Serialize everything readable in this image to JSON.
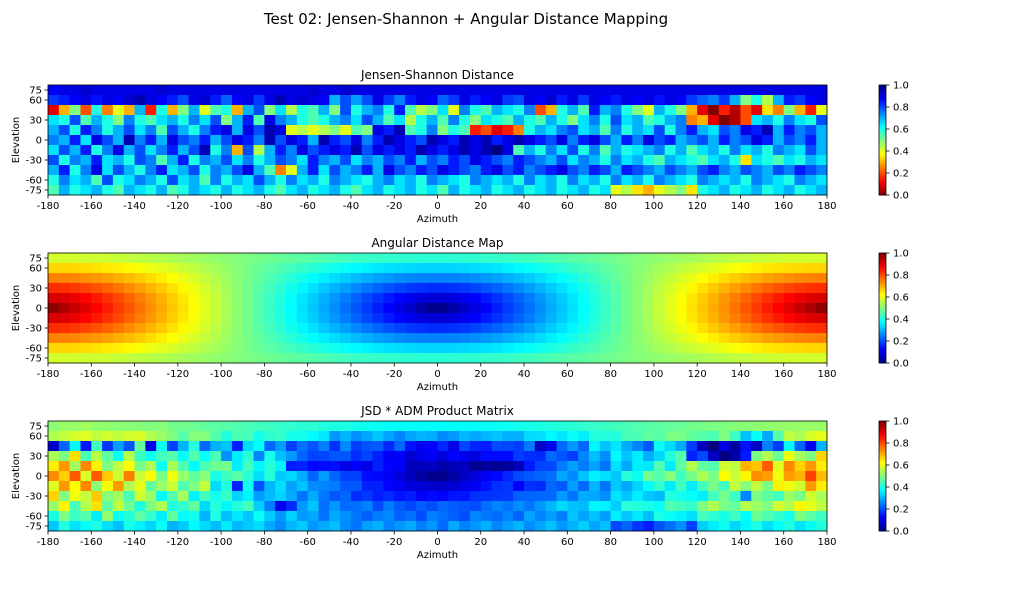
{
  "figure": {
    "title": "Test 02: Jensen-Shannon + Angular Distance Mapping"
  },
  "chart_data": [
    {
      "type": "heatmap",
      "title": "Jensen-Shannon Distance",
      "xlabel": "Azimuth",
      "ylabel": "Elevation",
      "colormap": "jet_r",
      "xlim": [
        -180,
        180
      ],
      "ylim": [
        -82.5,
        82.5
      ],
      "x_ticks": [
        -180,
        -160,
        -140,
        -120,
        -100,
        -80,
        -60,
        -40,
        -20,
        0,
        20,
        40,
        60,
        80,
        100,
        120,
        140,
        160,
        180
      ],
      "y_ticks": [
        75,
        60,
        30,
        0,
        -30,
        -60,
        -75
      ],
      "colorbar": {
        "range": [
          0,
          1
        ],
        "ticks": [
          0.0,
          0.2,
          0.4,
          0.6,
          0.8,
          1.0
        ]
      },
      "rows": [
        {
          "elevation": 75,
          "values": [
            0.88,
            0.9,
            0.9,
            0.92,
            0.9,
            0.9,
            0.9,
            0.9,
            0.9,
            0.9,
            0.92,
            0.9,
            0.9,
            0.9,
            0.9,
            0.9,
            0.9,
            0.9,
            0.9,
            0.9,
            0.9,
            0.9,
            0.9,
            0.9,
            0.92,
            0.9,
            0.9,
            0.92,
            0.9,
            0.9,
            0.9,
            0.9,
            0.9,
            0.9,
            0.9,
            0.9,
            0.9,
            0.9,
            0.9,
            0.9,
            0.9,
            0.9,
            0.9,
            0.9,
            0.9,
            0.9,
            0.9,
            0.9,
            0.9,
            0.9,
            0.9,
            0.9,
            0.9,
            0.9,
            0.9,
            0.9,
            0.9,
            0.9,
            0.9,
            0.9,
            0.9,
            0.9,
            0.9,
            0.9,
            0.9,
            0.9,
            0.9,
            0.9,
            0.9,
            0.9,
            0.9,
            0.9
          ]
        },
        {
          "elevation": 60,
          "values": [
            0.82,
            0.85,
            0.88,
            0.9,
            0.86,
            0.9,
            0.88,
            0.92,
            0.95,
            0.9,
            0.88,
            0.85,
            0.8,
            0.9,
            0.92,
            0.85,
            0.78,
            0.88,
            0.9,
            0.82,
            0.9,
            0.95,
            0.9,
            0.92,
            0.9,
            0.88,
            0.7,
            0.8,
            0.72,
            0.8,
            0.9,
            0.82,
            0.75,
            0.85,
            0.9,
            0.88,
            0.78,
            0.82,
            0.9,
            0.85,
            0.88,
            0.9,
            0.82,
            0.8,
            0.9,
            0.88,
            0.92,
            0.85,
            0.9,
            0.82,
            0.9,
            0.88,
            0.85,
            0.9,
            0.88,
            0.9,
            0.86,
            0.9,
            0.88,
            0.82,
            0.78,
            0.75,
            0.82,
            0.7,
            0.5,
            0.6,
            0.45,
            0.7,
            0.85,
            0.82,
            0.88,
            0.9
          ]
        },
        {
          "elevation": 45,
          "values": [
            0.1,
            0.3,
            0.5,
            0.2,
            0.6,
            0.25,
            0.4,
            0.3,
            0.7,
            0.15,
            0.6,
            0.3,
            0.5,
            0.7,
            0.4,
            0.55,
            0.6,
            0.3,
            0.7,
            0.8,
            0.5,
            0.65,
            0.45,
            0.6,
            0.55,
            0.7,
            0.5,
            0.8,
            0.6,
            0.7,
            0.75,
            0.6,
            0.85,
            0.55,
            0.45,
            0.5,
            0.65,
            0.4,
            0.75,
            0.6,
            0.55,
            0.7,
            0.65,
            0.6,
            0.75,
            0.2,
            0.3,
            0.6,
            0.7,
            0.55,
            0.85,
            0.7,
            0.75,
            0.6,
            0.5,
            0.4,
            0.7,
            0.6,
            0.5,
            0.3,
            0.1,
            0.0,
            0.15,
            0.05,
            0.2,
            0.1,
            0.35,
            0.25,
            0.5,
            0.3,
            0.15,
            0.4
          ]
        },
        {
          "elevation": 30,
          "values": [
            0.65,
            0.6,
            0.8,
            0.55,
            0.7,
            0.6,
            0.5,
            0.75,
            0.6,
            0.55,
            0.65,
            0.7,
            0.6,
            0.75,
            0.65,
            0.8,
            0.5,
            0.7,
            0.85,
            0.55,
            0.9,
            0.75,
            0.7,
            0.6,
            0.55,
            0.6,
            0.7,
            0.75,
            0.65,
            0.8,
            0.7,
            0.55,
            0.65,
            0.45,
            0.6,
            0.7,
            0.55,
            0.75,
            0.6,
            0.5,
            0.65,
            0.6,
            0.55,
            0.7,
            0.6,
            0.55,
            0.7,
            0.6,
            0.5,
            0.65,
            0.75,
            0.6,
            0.8,
            0.65,
            0.7,
            0.55,
            0.6,
            0.7,
            0.75,
            0.25,
            0.3,
            0.1,
            0.0,
            0.05,
            0.2,
            0.65,
            0.7,
            0.6,
            0.75,
            0.65,
            0.6,
            0.8
          ]
        },
        {
          "elevation": 15,
          "values": [
            0.7,
            0.8,
            0.6,
            0.85,
            0.75,
            0.6,
            0.7,
            0.8,
            0.65,
            0.75,
            0.55,
            0.8,
            0.7,
            0.6,
            0.75,
            0.85,
            0.9,
            0.7,
            0.9,
            0.8,
            0.95,
            0.9,
            0.4,
            0.45,
            0.4,
            0.45,
            0.5,
            0.4,
            0.55,
            0.5,
            0.9,
            0.85,
            0.95,
            0.55,
            0.6,
            0.75,
            0.5,
            0.6,
            0.55,
            0.15,
            0.2,
            0.1,
            0.15,
            0.25,
            0.6,
            0.7,
            0.65,
            0.75,
            0.8,
            0.65,
            0.7,
            0.55,
            0.75,
            0.6,
            0.7,
            0.65,
            0.8,
            0.6,
            0.75,
            0.85,
            0.7,
            0.65,
            0.8,
            0.75,
            0.9,
            0.85,
            0.95,
            0.7,
            0.85,
            0.75,
            0.8,
            0.7
          ]
        },
        {
          "elevation": 0,
          "values": [
            0.75,
            0.7,
            0.85,
            0.65,
            0.9,
            0.8,
            0.7,
            0.95,
            0.75,
            0.85,
            0.7,
            0.9,
            0.8,
            0.75,
            0.85,
            0.7,
            0.8,
            0.9,
            0.85,
            0.75,
            0.95,
            0.8,
            0.9,
            0.85,
            0.7,
            0.95,
            0.85,
            0.8,
            0.9,
            0.75,
            0.85,
            0.95,
            0.9,
            0.85,
            0.8,
            0.95,
            0.9,
            0.85,
            0.95,
            0.9,
            0.95,
            0.85,
            0.9,
            0.95,
            0.9,
            0.85,
            0.8,
            0.9,
            0.75,
            0.85,
            0.9,
            0.8,
            0.7,
            0.85,
            0.75,
            0.9,
            0.8,
            0.85,
            0.7,
            0.75,
            0.8,
            0.7,
            0.85,
            0.75,
            0.8,
            0.9,
            0.85,
            0.7,
            0.8,
            0.75,
            0.85,
            0.7
          ]
        },
        {
          "elevation": -15,
          "values": [
            0.65,
            0.8,
            0.7,
            0.85,
            0.6,
            0.75,
            0.9,
            0.7,
            0.8,
            0.65,
            0.75,
            0.85,
            0.7,
            0.8,
            0.95,
            0.6,
            0.75,
            0.3,
            0.8,
            0.45,
            0.7,
            0.85,
            0.75,
            0.9,
            0.8,
            0.85,
            0.9,
            0.85,
            0.95,
            0.8,
            0.9,
            0.85,
            0.9,
            0.85,
            0.95,
            0.9,
            0.85,
            0.9,
            0.95,
            0.9,
            0.95,
            1.0,
            0.9,
            0.55,
            0.7,
            0.6,
            0.75,
            0.65,
            0.8,
            0.6,
            0.75,
            0.55,
            0.7,
            0.6,
            0.65,
            0.7,
            0.75,
            0.6,
            0.7,
            0.55,
            0.65,
            0.7,
            0.6,
            0.75,
            0.65,
            0.7,
            0.6,
            0.75,
            0.7,
            0.65,
            0.8,
            0.7
          ]
        },
        {
          "elevation": -30,
          "values": [
            0.8,
            0.6,
            0.75,
            0.7,
            0.85,
            0.65,
            0.7,
            0.6,
            0.8,
            0.75,
            0.55,
            0.7,
            0.85,
            0.6,
            0.75,
            0.7,
            0.8,
            0.65,
            0.75,
            0.6,
            0.7,
            0.8,
            0.75,
            0.65,
            0.85,
            0.75,
            0.7,
            0.8,
            0.65,
            0.75,
            0.7,
            0.8,
            0.75,
            0.85,
            0.7,
            0.8,
            0.75,
            0.85,
            0.8,
            0.9,
            0.85,
            0.8,
            0.75,
            0.85,
            0.8,
            0.75,
            0.7,
            0.8,
            0.65,
            0.75,
            0.7,
            0.6,
            0.75,
            0.65,
            0.7,
            0.6,
            0.55,
            0.7,
            0.65,
            0.6,
            0.55,
            0.65,
            0.7,
            0.6,
            0.35,
            0.65,
            0.6,
            0.55,
            0.65,
            0.6,
            0.7,
            0.65
          ]
        },
        {
          "elevation": -45,
          "values": [
            0.7,
            0.85,
            0.6,
            0.75,
            0.9,
            0.65,
            0.8,
            0.7,
            0.6,
            0.75,
            0.85,
            0.65,
            0.7,
            0.8,
            0.6,
            0.75,
            0.7,
            0.8,
            0.9,
            0.7,
            0.55,
            0.25,
            0.4,
            0.7,
            0.85,
            0.65,
            0.8,
            0.7,
            0.75,
            0.85,
            0.7,
            0.9,
            0.8,
            0.75,
            0.85,
            0.8,
            0.9,
            0.85,
            0.8,
            0.75,
            0.85,
            0.9,
            0.8,
            0.85,
            0.75,
            0.8,
            0.85,
            0.9,
            0.8,
            0.75,
            0.85,
            0.8,
            0.7,
            0.85,
            0.8,
            0.75,
            0.7,
            0.8,
            0.75,
            0.7,
            0.8,
            0.85,
            0.75,
            0.7,
            0.8,
            0.75,
            0.7,
            0.8,
            0.75,
            0.85,
            0.8,
            0.75
          ]
        },
        {
          "elevation": -60,
          "values": [
            0.6,
            0.75,
            0.65,
            0.7,
            0.55,
            0.8,
            0.6,
            0.65,
            0.75,
            0.7,
            0.6,
            0.8,
            0.65,
            0.7,
            0.55,
            0.75,
            0.6,
            0.7,
            0.65,
            0.8,
            0.7,
            0.6,
            0.75,
            0.65,
            0.7,
            0.6,
            0.75,
            0.7,
            0.65,
            0.6,
            0.7,
            0.75,
            0.65,
            0.7,
            0.6,
            0.75,
            0.7,
            0.65,
            0.6,
            0.75,
            0.7,
            0.65,
            0.7,
            0.6,
            0.75,
            0.65,
            0.7,
            0.6,
            0.75,
            0.65,
            0.7,
            0.6,
            0.75,
            0.65,
            0.7,
            0.6,
            0.75,
            0.7,
            0.65,
            0.6,
            0.75,
            0.7,
            0.65,
            0.7,
            0.6,
            0.75,
            0.7,
            0.65,
            0.6,
            0.75,
            0.7,
            0.65
          ]
        },
        {
          "elevation": -75,
          "values": [
            0.55,
            0.7,
            0.6,
            0.65,
            0.7,
            0.6,
            0.55,
            0.7,
            0.65,
            0.6,
            0.7,
            0.55,
            0.6,
            0.7,
            0.65,
            0.6,
            0.7,
            0.6,
            0.65,
            0.7,
            0.6,
            0.55,
            0.65,
            0.7,
            0.6,
            0.65,
            0.7,
            0.6,
            0.55,
            0.65,
            0.7,
            0.6,
            0.65,
            0.7,
            0.6,
            0.65,
            0.55,
            0.7,
            0.6,
            0.65,
            0.7,
            0.6,
            0.65,
            0.7,
            0.6,
            0.65,
            0.7,
            0.6,
            0.65,
            0.7,
            0.6,
            0.65,
            0.4,
            0.45,
            0.35,
            0.3,
            0.4,
            0.45,
            0.5,
            0.35,
            0.6,
            0.65,
            0.7,
            0.6,
            0.65,
            0.7,
            0.6,
            0.65,
            0.7,
            0.6,
            0.65,
            0.7
          ]
        }
      ]
    },
    {
      "type": "heatmap",
      "title": "Angular Distance Map",
      "xlabel": "Azimuth",
      "ylabel": "Elevation",
      "colormap": "jet",
      "xlim": [
        -180,
        180
      ],
      "ylim": [
        -82.5,
        82.5
      ],
      "x_ticks": [
        -180,
        -160,
        -140,
        -120,
        -100,
        -80,
        -60,
        -40,
        -20,
        0,
        20,
        40,
        60,
        80,
        100,
        120,
        140,
        160,
        180
      ],
      "y_ticks": [
        75,
        60,
        30,
        0,
        -30,
        -60,
        -75
      ],
      "colorbar": {
        "range": [
          0,
          1
        ],
        "ticks": [
          0.0,
          0.2,
          0.4,
          0.6,
          0.8,
          1.0
        ]
      },
      "value_rule": "value = angular distance from (azimuth 0, elevation 0) divided by 180°; each cell evaluated at its center"
    },
    {
      "type": "heatmap",
      "title": "JSD * ADM Product Matrix",
      "xlabel": "Azimuth",
      "ylabel": "Elevation",
      "colormap": "jet",
      "xlim": [
        -180,
        180
      ],
      "ylim": [
        -82.5,
        82.5
      ],
      "x_ticks": [
        -180,
        -160,
        -140,
        -120,
        -100,
        -80,
        -60,
        -40,
        -20,
        0,
        20,
        40,
        60,
        80,
        100,
        120,
        140,
        160,
        180
      ],
      "y_ticks": [
        75,
        60,
        30,
        0,
        -30,
        -60,
        -75
      ],
      "colorbar": {
        "range": [
          0,
          1
        ],
        "ticks": [
          0.0,
          0.2,
          0.4,
          0.6,
          0.8,
          1.0
        ]
      },
      "value_rule": "value = Jensen-Shannon Distance × Angular Distance Map, cell by cell"
    }
  ]
}
